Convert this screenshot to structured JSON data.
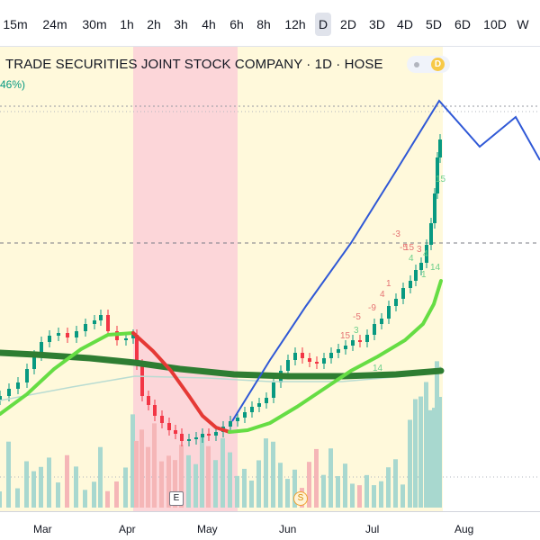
{
  "toolbar": {
    "timeframes": [
      "15m",
      "24m",
      "30m",
      "1h",
      "2h",
      "3h",
      "4h",
      "6h",
      "8h",
      "12h",
      "D",
      "2D",
      "3D",
      "4D",
      "5D",
      "6D",
      "10D",
      "W"
    ],
    "active": "D"
  },
  "header": {
    "title": "TRADE SECURITIES JOINT STOCK COMPANY · 1D · HOSE",
    "change_fragment": "46%)",
    "badge_letter": "D"
  },
  "markers": {
    "earnings": "E",
    "split": "S"
  },
  "time_axis": {
    "labels": [
      "Mar",
      "Apr",
      "May",
      "Jun",
      "Jul",
      "Aug"
    ]
  },
  "annotations": [
    "15",
    "3",
    "-5",
    "-9",
    "4",
    "1",
    "14",
    "-3",
    "-5",
    "15",
    "3",
    "4",
    "1",
    "4",
    "14",
    "15"
  ],
  "colors": {
    "background": "#ffffff",
    "yellow_zone": "#fff9db",
    "red_zone": "#fcd6d9",
    "up": "#089981",
    "down": "#f23645",
    "volume_up": "#a8d8cf",
    "volume_down": "#f5b6b7",
    "ma_thick": "#2e7d32",
    "ma_green": "#66dd44",
    "ma_red": "#e53935",
    "projection": "#2f58d6",
    "badge": "#f7c948"
  },
  "chart_data": {
    "type": "candlestick",
    "x_ticks": [
      "Mar",
      "Apr",
      "May",
      "Jun",
      "Jul",
      "Aug"
    ],
    "y_axis": "none shown",
    "highlighted_ranges": [
      "yellow: to early Apr",
      "red: early Apr – mid May",
      "yellow: mid May – late Jul"
    ],
    "overlays": [
      "thick green moving average",
      "light green/red moving average",
      "thin pale moving average",
      "blue projection line"
    ],
    "trend": "range Mar, drop Apr, base May, strong rally Jun–Jul"
  }
}
